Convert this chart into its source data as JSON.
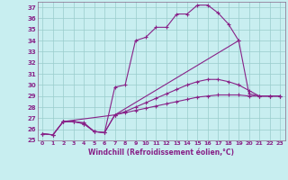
{
  "xlabel": "Windchill (Refroidissement éolien,°C)",
  "bg_color": "#c8eef0",
  "grid_color": "#99cccc",
  "line_color": "#882288",
  "spine_color": "#886688",
  "xlim": [
    -0.5,
    23.5
  ],
  "ylim": [
    25,
    37.5
  ],
  "yticks": [
    25,
    26,
    27,
    28,
    29,
    30,
    31,
    32,
    33,
    34,
    35,
    36,
    37
  ],
  "xticks": [
    0,
    1,
    2,
    3,
    4,
    5,
    6,
    7,
    8,
    9,
    10,
    11,
    12,
    13,
    14,
    15,
    16,
    17,
    18,
    19,
    20,
    21,
    22,
    23
  ],
  "lines": [
    {
      "x": [
        0,
        1,
        2,
        3,
        4,
        5,
        6,
        7,
        8,
        9,
        10,
        11,
        12,
        13,
        14,
        15,
        16,
        17,
        18,
        19,
        20,
        21,
        22,
        23
      ],
      "y": [
        25.6,
        25.5,
        26.7,
        26.7,
        26.6,
        25.8,
        25.7,
        29.8,
        30.0,
        34.0,
        34.3,
        35.2,
        35.2,
        36.4,
        36.4,
        37.2,
        37.2,
        36.5,
        35.5,
        34.0,
        29.2,
        29.0,
        29.0,
        29.0
      ]
    },
    {
      "x": [
        0,
        1,
        2,
        3,
        4,
        5,
        6,
        7,
        8,
        9,
        10,
        11,
        12,
        13,
        14,
        15,
        16,
        17,
        18,
        19,
        20,
        21,
        22,
        23
      ],
      "y": [
        25.6,
        25.5,
        26.7,
        26.7,
        26.5,
        25.8,
        25.7,
        27.3,
        27.6,
        28.0,
        28.4,
        28.8,
        29.2,
        29.6,
        30.0,
        30.3,
        30.5,
        30.5,
        30.3,
        30.0,
        29.5,
        29.0,
        29.0,
        29.0
      ]
    },
    {
      "x": [
        0,
        1,
        2,
        3,
        4,
        5,
        6,
        7,
        8,
        9,
        10,
        11,
        12,
        13,
        14,
        15,
        16,
        17,
        18,
        19,
        20,
        21,
        22,
        23
      ],
      "y": [
        25.6,
        25.5,
        26.7,
        26.7,
        26.5,
        25.8,
        25.7,
        27.3,
        27.5,
        27.7,
        27.9,
        28.1,
        28.3,
        28.5,
        28.7,
        28.9,
        29.0,
        29.1,
        29.1,
        29.1,
        29.0,
        29.0,
        29.0,
        29.0
      ]
    },
    {
      "x": [
        2,
        7,
        19
      ],
      "y": [
        26.7,
        27.3,
        34.0
      ]
    }
  ]
}
